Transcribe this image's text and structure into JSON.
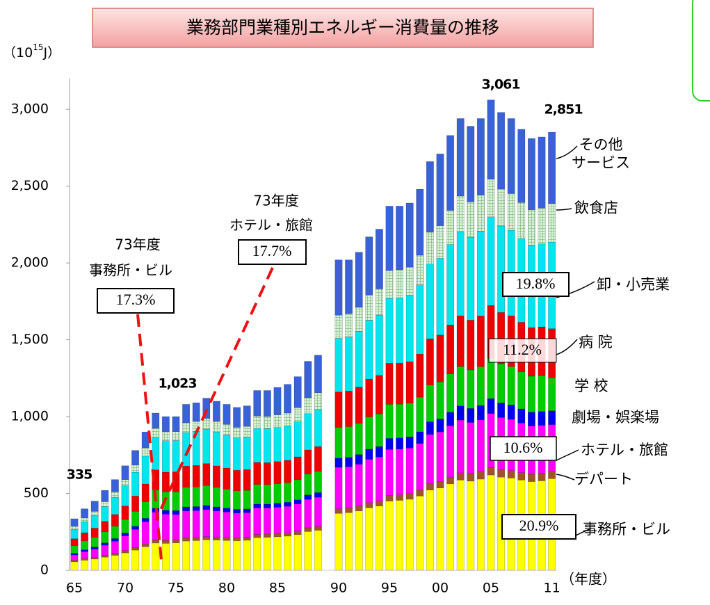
{
  "chart_data": {
    "type": "stacked-bar",
    "title": "業務部門業種別エネルギー消費量の推移",
    "y_unit": [
      "（10",
      "15",
      "J）"
    ],
    "x_unit": "（年度）",
    "categories": [
      "65",
      null,
      null,
      null,
      null,
      "70",
      null,
      null,
      null,
      null,
      "75",
      null,
      null,
      null,
      null,
      "80",
      null,
      null,
      null,
      null,
      "85",
      null,
      null,
      null,
      null,
      "90",
      null,
      null,
      null,
      null,
      "95",
      null,
      null,
      null,
      null,
      "00",
      null,
      null,
      null,
      null,
      "05",
      null,
      null,
      null,
      null,
      null,
      "11"
    ],
    "ylim": [
      0,
      3200
    ],
    "yticks": [
      0,
      500,
      {
        "value": 1000,
        "label": "1,000"
      },
      {
        "value": 1500,
        "label": "1,500"
      },
      {
        "value": 2000,
        "label": "2,000"
      },
      {
        "value": 2500,
        "label": "2,500"
      },
      {
        "value": 3000,
        "label": "3,000"
      }
    ],
    "series": [
      {
        "name": "事務所・ビル",
        "color": "#ffff00",
        "values": [
          55,
          65,
          73,
          85,
          97,
          113,
          131,
          153,
          177,
          175,
          178,
          190,
          193,
          198,
          196,
          194,
          192,
          195,
          212,
          214,
          218,
          222,
          232,
          252,
          260,
          370,
          375,
          386,
          407,
          418,
          450,
          455,
          462,
          483,
          522,
          535,
          562,
          587,
          580,
          593,
          620,
          606,
          600,
          587,
          577,
          582,
          596
        ]
      },
      {
        "name": "デパート",
        "color": "#a0522d",
        "values": [
          10,
          11,
          12,
          13,
          14,
          15,
          17,
          18,
          20,
          20,
          20,
          21,
          21,
          21,
          21,
          20,
          20,
          20,
          21,
          21,
          21,
          22,
          23,
          24,
          25,
          30,
          31,
          32,
          33,
          34,
          36,
          37,
          37,
          39,
          42,
          43,
          45,
          47,
          47,
          48,
          50,
          49,
          49,
          48,
          48,
          49,
          50
        ]
      },
      {
        "name": "ホテル・旅館",
        "color": "#ff00ff",
        "values": [
          35,
          45,
          53,
          65,
          78,
          96,
          118,
          145,
          181,
          170,
          165,
          175,
          174,
          176,
          170,
          165,
          160,
          160,
          172,
          170,
          171,
          172,
          176,
          185,
          190,
          270,
          268,
          272,
          282,
          285,
          300,
          297,
          296,
          303,
          320,
          322,
          333,
          343,
          335,
          338,
          350,
          339,
          333,
          323,
          314,
          312,
          302
        ]
      },
      {
        "name": "劇場・娯楽場",
        "color": "#0000ee",
        "values": [
          10,
          12,
          13,
          15,
          17,
          18,
          20,
          22,
          25,
          25,
          25,
          26,
          26,
          26,
          25,
          25,
          24,
          24,
          25,
          25,
          26,
          26,
          27,
          29,
          30,
          60,
          61,
          63,
          66,
          68,
          72,
          72,
          73,
          76,
          82,
          84,
          88,
          92,
          91,
          93,
          97,
          95,
          94,
          92,
          90,
          90,
          90
        ]
      },
      {
        "name": "学 校",
        "color": "#00cc00",
        "values": [
          50,
          58,
          64,
          72,
          80,
          88,
          97,
          108,
          120,
          120,
          122,
          128,
          128,
          130,
          127,
          124,
          121,
          121,
          128,
          127,
          127,
          128,
          131,
          137,
          140,
          200,
          200,
          203,
          210,
          212,
          222,
          220,
          220,
          226,
          240,
          242,
          250,
          257,
          251,
          253,
          262,
          254,
          249,
          241,
          234,
          233,
          215
        ]
      },
      {
        "name": "病 院",
        "color": "#ee0000",
        "values": [
          45,
          53,
          59,
          68,
          77,
          88,
          100,
          115,
          130,
          128,
          130,
          138,
          140,
          143,
          140,
          137,
          134,
          135,
          144,
          143,
          144,
          145,
          149,
          156,
          160,
          230,
          231,
          236,
          246,
          251,
          267,
          267,
          269,
          280,
          300,
          305,
          318,
          330,
          324,
          330,
          344,
          335,
          331,
          323,
          316,
          318,
          319
        ]
      },
      {
        "name": "卸・小売業",
        "color": "#00e5ee",
        "values": [
          60,
          72,
          82,
          97,
          112,
          132,
          155,
          182,
          210,
          205,
          204,
          218,
          220,
          225,
          220,
          215,
          210,
          210,
          222,
          221,
          222,
          223,
          228,
          236,
          240,
          350,
          352,
          362,
          382,
          393,
          422,
          425,
          431,
          450,
          487,
          499,
          524,
          547,
          540,
          552,
          577,
          563,
          557,
          545,
          535,
          540,
          564
        ]
      },
      {
        "name": "飲食店",
        "color": "#c8ecc8",
        "values": [
          20,
          24,
          27,
          31,
          35,
          40,
          46,
          53,
          60,
          58,
          58,
          64,
          66,
          69,
          69,
          69,
          69,
          71,
          79,
          80,
          82,
          85,
          92,
          103,
          110,
          150,
          152,
          157,
          165,
          170,
          181,
          182,
          185,
          193,
          207,
          212,
          222,
          232,
          229,
          234,
          245,
          240,
          238,
          234,
          231,
          233,
          250
        ]
      },
      {
        "name": "その他\nサービス",
        "color": "#3a62d8",
        "values": [
          50,
          60,
          67,
          74,
          80,
          90,
          96,
          104,
          100,
          99,
          98,
          120,
          122,
          132,
          132,
          131,
          130,
          134,
          167,
          169,
          179,
          187,
          202,
          238,
          245,
          360,
          350,
          359,
          379,
          389,
          420,
          415,
          417,
          430,
          460,
          468,
          488,
          505,
          493,
          499,
          516,
          499,
          489,
          477,
          465,
          463,
          465
        ]
      }
    ],
    "totals": [
      "335",
      "1,023",
      "3,061",
      "2,851"
    ],
    "callouts": [
      {
        "year": "73年度",
        "label": "事務所・ビル",
        "pct": "17.3%"
      },
      {
        "year": "73年度",
        "label": "ホテル・旅館",
        "pct": "17.7%"
      }
    ],
    "shares": [
      "19.8%",
      "11.2%",
      "10.6%",
      "20.9%"
    ]
  }
}
